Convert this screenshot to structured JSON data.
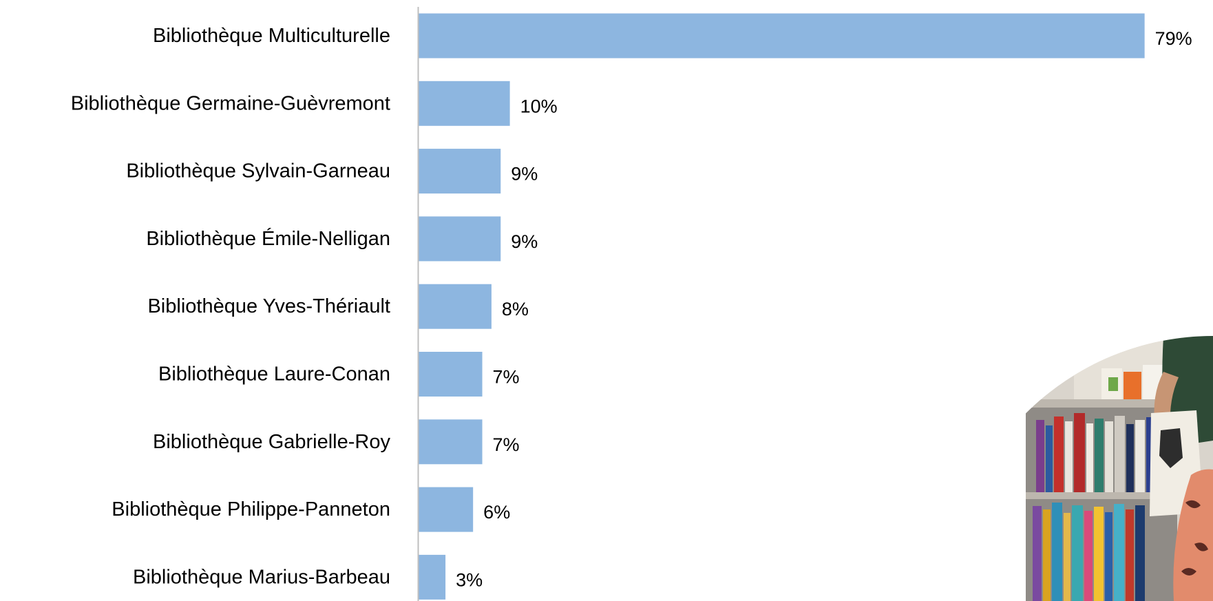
{
  "chart_data": {
    "type": "bar",
    "orientation": "horizontal",
    "categories": [
      "Bibliothèque Multiculturelle",
      "Bibliothèque Germaine-Guèvremont",
      "Bibliothèque Sylvain-Garneau",
      "Bibliothèque Émile-Nelligan",
      "Bibliothèque Yves-Thériault",
      "Bibliothèque Laure-Conan",
      "Bibliothèque Gabrielle-Roy",
      "Bibliothèque Philippe-Panneton",
      "Bibliothèque Marius-Barbeau"
    ],
    "values": [
      79,
      10,
      9,
      9,
      8,
      7,
      7,
      6,
      3
    ],
    "value_labels": [
      "79%",
      "10%",
      "9%",
      "9%",
      "8%",
      "7%",
      "7%",
      "6%",
      "3%"
    ],
    "value_unit": "%",
    "xlim": [
      0,
      80
    ],
    "grid": false,
    "bar_color": "#8DB6E0",
    "axis_color": "#BFBFBF"
  },
  "photo": {
    "subject": "library-shelves-photo"
  }
}
